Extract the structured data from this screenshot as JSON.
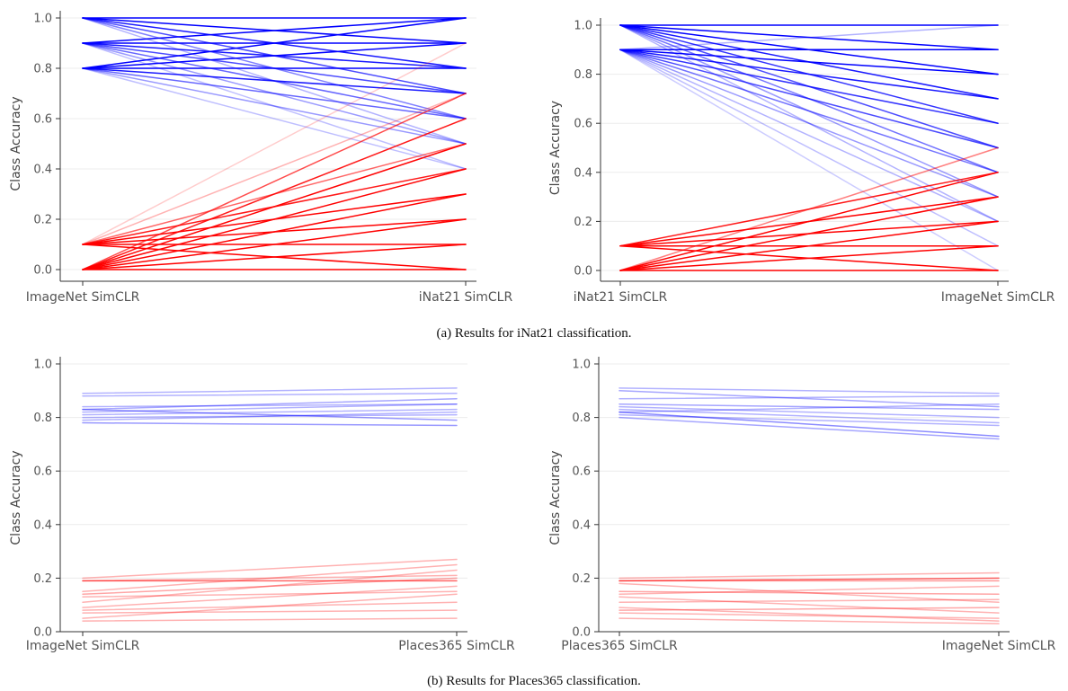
{
  "captions": {
    "a": "(a) Results for iNat21 classification.",
    "b": "(b) Results for Places365 classification."
  },
  "colors": {
    "worse": "#ff0000",
    "better": "#0000ff"
  },
  "chart_data": [
    {
      "type": "line",
      "panel": "a-left",
      "categories": [
        "ImageNet SimCLR",
        "iNat21 SimCLR"
      ],
      "ylabel": "Class Accuracy",
      "xlabel": "",
      "ylim": [
        0,
        1
      ],
      "yticks": [
        "0.0",
        "0.2",
        "0.4",
        "0.6",
        "0.8",
        "1.0"
      ],
      "grid": true,
      "series": [
        {
          "values": [
            1.0,
            1.0
          ],
          "color": "blue",
          "opacity": 1.0
        },
        {
          "values": [
            1.0,
            0.9
          ],
          "color": "blue",
          "opacity": 1.0
        },
        {
          "values": [
            1.0,
            0.8
          ],
          "color": "blue",
          "opacity": 0.9
        },
        {
          "values": [
            1.0,
            0.7
          ],
          "color": "blue",
          "opacity": 0.7
        },
        {
          "values": [
            1.0,
            0.6
          ],
          "color": "blue",
          "opacity": 0.5
        },
        {
          "values": [
            1.0,
            0.5
          ],
          "color": "blue",
          "opacity": 0.3
        },
        {
          "values": [
            0.9,
            1.0
          ],
          "color": "blue",
          "opacity": 1.0
        },
        {
          "values": [
            0.9,
            0.9
          ],
          "color": "blue",
          "opacity": 1.0
        },
        {
          "values": [
            0.9,
            0.8
          ],
          "color": "blue",
          "opacity": 0.9
        },
        {
          "values": [
            0.9,
            0.7
          ],
          "color": "blue",
          "opacity": 0.7
        },
        {
          "values": [
            0.9,
            0.6
          ],
          "color": "blue",
          "opacity": 0.6
        },
        {
          "values": [
            0.9,
            0.5
          ],
          "color": "blue",
          "opacity": 0.4
        },
        {
          "values": [
            0.9,
            0.4
          ],
          "color": "blue",
          "opacity": 0.25
        },
        {
          "values": [
            0.8,
            1.0
          ],
          "color": "blue",
          "opacity": 1.0
        },
        {
          "values": [
            0.8,
            0.9
          ],
          "color": "blue",
          "opacity": 1.0
        },
        {
          "values": [
            0.8,
            0.8
          ],
          "color": "blue",
          "opacity": 1.0
        },
        {
          "values": [
            0.8,
            0.7
          ],
          "color": "blue",
          "opacity": 0.9
        },
        {
          "values": [
            0.8,
            0.6
          ],
          "color": "blue",
          "opacity": 0.6
        },
        {
          "values": [
            0.8,
            0.5
          ],
          "color": "blue",
          "opacity": 0.4
        },
        {
          "values": [
            0.8,
            0.4
          ],
          "color": "blue",
          "opacity": 0.25
        },
        {
          "values": [
            0.1,
            0.9
          ],
          "color": "red",
          "opacity": 0.2
        },
        {
          "values": [
            0.1,
            0.7
          ],
          "color": "red",
          "opacity": 0.3
        },
        {
          "values": [
            0.1,
            0.5
          ],
          "color": "red",
          "opacity": 0.6
        },
        {
          "values": [
            0.1,
            0.4
          ],
          "color": "red",
          "opacity": 0.9
        },
        {
          "values": [
            0.1,
            0.3
          ],
          "color": "red",
          "opacity": 1.0
        },
        {
          "values": [
            0.1,
            0.2
          ],
          "color": "red",
          "opacity": 1.0
        },
        {
          "values": [
            0.1,
            0.1
          ],
          "color": "red",
          "opacity": 1.0
        },
        {
          "values": [
            0.1,
            0.0
          ],
          "color": "red",
          "opacity": 1.0
        },
        {
          "values": [
            0.0,
            0.7
          ],
          "color": "red",
          "opacity": 0.7
        },
        {
          "values": [
            0.0,
            0.6
          ],
          "color": "red",
          "opacity": 0.9
        },
        {
          "values": [
            0.0,
            0.5
          ],
          "color": "red",
          "opacity": 1.0
        },
        {
          "values": [
            0.0,
            0.4
          ],
          "color": "red",
          "opacity": 1.0
        },
        {
          "values": [
            0.0,
            0.3
          ],
          "color": "red",
          "opacity": 1.0
        },
        {
          "values": [
            0.0,
            0.2
          ],
          "color": "red",
          "opacity": 1.0
        },
        {
          "values": [
            0.0,
            0.1
          ],
          "color": "red",
          "opacity": 1.0
        },
        {
          "values": [
            0.0,
            0.0
          ],
          "color": "red",
          "opacity": 1.0
        }
      ]
    },
    {
      "type": "line",
      "panel": "a-right",
      "categories": [
        "iNat21 SimCLR",
        "ImageNet SimCLR"
      ],
      "ylabel": "Class Accuracy",
      "xlabel": "",
      "ylim": [
        0,
        1
      ],
      "yticks": [
        "0.0",
        "0.2",
        "0.4",
        "0.6",
        "0.8",
        "1.0"
      ],
      "grid": true,
      "series": [
        {
          "values": [
            1.0,
            1.0
          ],
          "color": "blue",
          "opacity": 1.0
        },
        {
          "values": [
            1.0,
            0.9
          ],
          "color": "blue",
          "opacity": 1.0
        },
        {
          "values": [
            1.0,
            0.8
          ],
          "color": "blue",
          "opacity": 1.0
        },
        {
          "values": [
            1.0,
            0.7
          ],
          "color": "blue",
          "opacity": 0.9
        },
        {
          "values": [
            1.0,
            0.6
          ],
          "color": "blue",
          "opacity": 0.8
        },
        {
          "values": [
            1.0,
            0.5
          ],
          "color": "blue",
          "opacity": 0.7
        },
        {
          "values": [
            1.0,
            0.4
          ],
          "color": "blue",
          "opacity": 0.55
        },
        {
          "values": [
            1.0,
            0.3
          ],
          "color": "blue",
          "opacity": 0.4
        },
        {
          "values": [
            1.0,
            0.2
          ],
          "color": "blue",
          "opacity": 0.3
        },
        {
          "values": [
            0.9,
            1.0
          ],
          "color": "blue",
          "opacity": 0.3
        },
        {
          "values": [
            0.9,
            0.9
          ],
          "color": "blue",
          "opacity": 1.0
        },
        {
          "values": [
            0.9,
            0.8
          ],
          "color": "blue",
          "opacity": 1.0
        },
        {
          "values": [
            0.9,
            0.7
          ],
          "color": "blue",
          "opacity": 0.9
        },
        {
          "values": [
            0.9,
            0.6
          ],
          "color": "blue",
          "opacity": 0.8
        },
        {
          "values": [
            0.9,
            0.5
          ],
          "color": "blue",
          "opacity": 0.7
        },
        {
          "values": [
            0.9,
            0.4
          ],
          "color": "blue",
          "opacity": 0.55
        },
        {
          "values": [
            0.9,
            0.3
          ],
          "color": "blue",
          "opacity": 0.4
        },
        {
          "values": [
            0.9,
            0.2
          ],
          "color": "blue",
          "opacity": 0.3
        },
        {
          "values": [
            0.9,
            0.1
          ],
          "color": "blue",
          "opacity": 0.25
        },
        {
          "values": [
            0.9,
            0.0
          ],
          "color": "blue",
          "opacity": 0.2
        },
        {
          "values": [
            0.1,
            0.4
          ],
          "color": "red",
          "opacity": 0.9
        },
        {
          "values": [
            0.1,
            0.3
          ],
          "color": "red",
          "opacity": 1.0
        },
        {
          "values": [
            0.1,
            0.2
          ],
          "color": "red",
          "opacity": 1.0
        },
        {
          "values": [
            0.1,
            0.1
          ],
          "color": "red",
          "opacity": 1.0
        },
        {
          "values": [
            0.1,
            0.0
          ],
          "color": "red",
          "opacity": 1.0
        },
        {
          "values": [
            0.0,
            0.5
          ],
          "color": "red",
          "opacity": 0.5
        },
        {
          "values": [
            0.0,
            0.4
          ],
          "color": "red",
          "opacity": 1.0
        },
        {
          "values": [
            0.0,
            0.3
          ],
          "color": "red",
          "opacity": 1.0
        },
        {
          "values": [
            0.0,
            0.2
          ],
          "color": "red",
          "opacity": 1.0
        },
        {
          "values": [
            0.0,
            0.1
          ],
          "color": "red",
          "opacity": 1.0
        },
        {
          "values": [
            0.0,
            0.0
          ],
          "color": "red",
          "opacity": 1.0
        }
      ]
    },
    {
      "type": "line",
      "panel": "b-left",
      "categories": [
        "ImageNet SimCLR",
        "Places365 SimCLR"
      ],
      "ylabel": "Class Accuracy",
      "xlabel": "",
      "ylim": [
        0,
        1
      ],
      "yticks": [
        "0.0",
        "0.2",
        "0.4",
        "0.6",
        "0.8",
        "1.0"
      ],
      "grid": true,
      "series": [
        {
          "values": [
            0.89,
            0.91
          ],
          "color": "blue",
          "opacity": 0.3
        },
        {
          "values": [
            0.88,
            0.89
          ],
          "color": "blue",
          "opacity": 0.3
        },
        {
          "values": [
            0.84,
            0.85
          ],
          "color": "blue",
          "opacity": 0.3
        },
        {
          "values": [
            0.83,
            0.87
          ],
          "color": "blue",
          "opacity": 0.35
        },
        {
          "values": [
            0.83,
            0.79
          ],
          "color": "blue",
          "opacity": 0.4
        },
        {
          "values": [
            0.82,
            0.85
          ],
          "color": "blue",
          "opacity": 0.3
        },
        {
          "values": [
            0.81,
            0.83
          ],
          "color": "blue",
          "opacity": 0.3
        },
        {
          "values": [
            0.8,
            0.81
          ],
          "color": "blue",
          "opacity": 0.3
        },
        {
          "values": [
            0.79,
            0.82
          ],
          "color": "blue",
          "opacity": 0.3
        },
        {
          "values": [
            0.78,
            0.77
          ],
          "color": "blue",
          "opacity": 0.4
        },
        {
          "values": [
            0.2,
            0.27
          ],
          "color": "red",
          "opacity": 0.3
        },
        {
          "values": [
            0.19,
            0.19
          ],
          "color": "red",
          "opacity": 0.6
        },
        {
          "values": [
            0.19,
            0.21
          ],
          "color": "red",
          "opacity": 0.3
        },
        {
          "values": [
            0.15,
            0.25
          ],
          "color": "red",
          "opacity": 0.3
        },
        {
          "values": [
            0.14,
            0.2
          ],
          "color": "red",
          "opacity": 0.35
        },
        {
          "values": [
            0.13,
            0.15
          ],
          "color": "red",
          "opacity": 0.3
        },
        {
          "values": [
            0.11,
            0.23
          ],
          "color": "red",
          "opacity": 0.3
        },
        {
          "values": [
            0.09,
            0.17
          ],
          "color": "red",
          "opacity": 0.3
        },
        {
          "values": [
            0.08,
            0.11
          ],
          "color": "red",
          "opacity": 0.3
        },
        {
          "values": [
            0.07,
            0.08
          ],
          "color": "red",
          "opacity": 0.3
        },
        {
          "values": [
            0.05,
            0.14
          ],
          "color": "red",
          "opacity": 0.3
        },
        {
          "values": [
            0.04,
            0.05
          ],
          "color": "red",
          "opacity": 0.3
        }
      ]
    },
    {
      "type": "line",
      "panel": "b-right",
      "categories": [
        "Places365 SimCLR",
        "ImageNet SimCLR"
      ],
      "ylabel": "Class Accuracy",
      "xlabel": "",
      "ylim": [
        0,
        1
      ],
      "yticks": [
        "0.0",
        "0.2",
        "0.4",
        "0.6",
        "0.8",
        "1.0"
      ],
      "grid": true,
      "series": [
        {
          "values": [
            0.91,
            0.89
          ],
          "color": "blue",
          "opacity": 0.3
        },
        {
          "values": [
            0.9,
            0.84
          ],
          "color": "blue",
          "opacity": 0.35
        },
        {
          "values": [
            0.87,
            0.88
          ],
          "color": "blue",
          "opacity": 0.3
        },
        {
          "values": [
            0.85,
            0.83
          ],
          "color": "blue",
          "opacity": 0.35
        },
        {
          "values": [
            0.84,
            0.8
          ],
          "color": "blue",
          "opacity": 0.3
        },
        {
          "values": [
            0.83,
            0.78
          ],
          "color": "blue",
          "opacity": 0.3
        },
        {
          "values": [
            0.82,
            0.85
          ],
          "color": "blue",
          "opacity": 0.3
        },
        {
          "values": [
            0.82,
            0.73
          ],
          "color": "blue",
          "opacity": 0.45
        },
        {
          "values": [
            0.81,
            0.77
          ],
          "color": "blue",
          "opacity": 0.3
        },
        {
          "values": [
            0.8,
            0.72
          ],
          "color": "blue",
          "opacity": 0.35
        },
        {
          "values": [
            0.2,
            0.22
          ],
          "color": "red",
          "opacity": 0.3
        },
        {
          "values": [
            0.19,
            0.2
          ],
          "color": "red",
          "opacity": 0.6
        },
        {
          "values": [
            0.19,
            0.19
          ],
          "color": "red",
          "opacity": 0.4
        },
        {
          "values": [
            0.18,
            0.11
          ],
          "color": "red",
          "opacity": 0.3
        },
        {
          "values": [
            0.15,
            0.14
          ],
          "color": "red",
          "opacity": 0.35
        },
        {
          "values": [
            0.14,
            0.17
          ],
          "color": "red",
          "opacity": 0.3
        },
        {
          "values": [
            0.13,
            0.07
          ],
          "color": "red",
          "opacity": 0.3
        },
        {
          "values": [
            0.11,
            0.12
          ],
          "color": "red",
          "opacity": 0.3
        },
        {
          "values": [
            0.09,
            0.04
          ],
          "color": "red",
          "opacity": 0.3
        },
        {
          "values": [
            0.08,
            0.09
          ],
          "color": "red",
          "opacity": 0.35
        },
        {
          "values": [
            0.07,
            0.05
          ],
          "color": "red",
          "opacity": 0.3
        },
        {
          "values": [
            0.05,
            0.03
          ],
          "color": "red",
          "opacity": 0.3
        }
      ]
    }
  ]
}
